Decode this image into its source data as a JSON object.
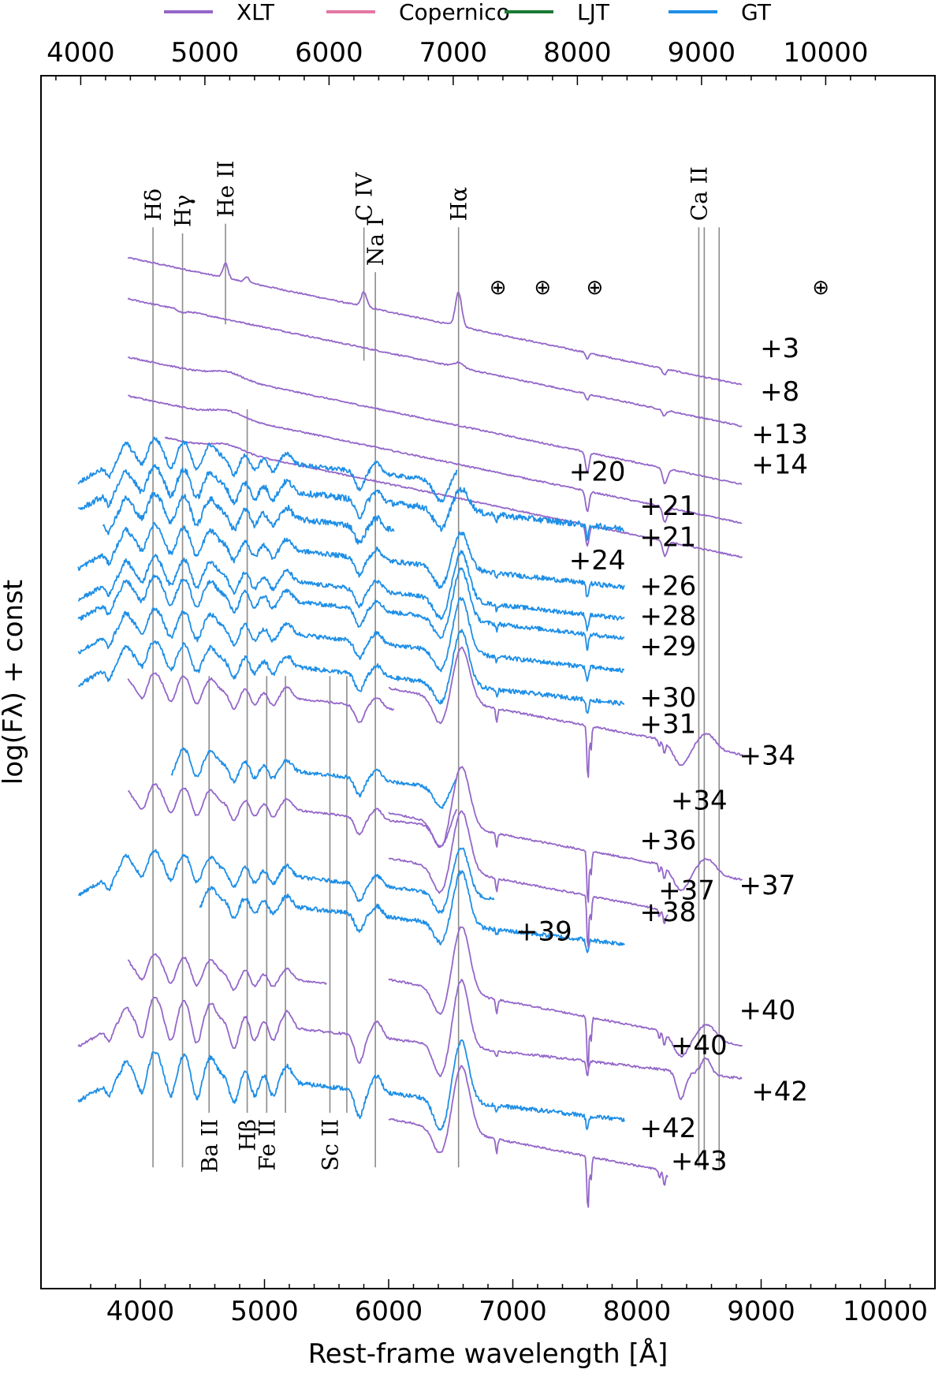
{
  "chart_data": {
    "type": "line",
    "xlabel": "Rest-frame wavelength [Å]",
    "ylabel": "log(Fλ) + const",
    "xlim": [
      3200,
      10400
    ],
    "xticks": [
      4000,
      5000,
      6000,
      7000,
      8000,
      9000,
      10000
    ],
    "top_xticks": [
      4000,
      5000,
      6000,
      7000,
      8000,
      9000,
      10000
    ],
    "top_axis_offset": 480,
    "legend": {
      "placement": "top, outside plot",
      "entries": [
        {
          "name": "XLT",
          "color": "#9467c9"
        },
        {
          "name": "Copernico",
          "color": "#e377a2"
        },
        {
          "name": "LJT",
          "color": "#1a7a35"
        },
        {
          "name": "GT",
          "color": "#1f8fe6"
        }
      ]
    },
    "line_ids": [
      {
        "label": "Hδ",
        "x": 4102,
        "y0": 1.0,
        "y1": 8.75,
        "label_pos": "top"
      },
      {
        "label": "Hγ",
        "x": 4340,
        "y0": 1.0,
        "y1": 8.7,
        "label_pos": "top"
      },
      {
        "label": "He II",
        "x": 4686,
        "y0": 7.95,
        "y1": 8.78,
        "label_pos": "top"
      },
      {
        "label": "C IV",
        "x": 5801,
        "y0": 7.65,
        "y1": 8.75,
        "label_pos": "top"
      },
      {
        "label": "Na I",
        "x": 5893,
        "y0": 1.0,
        "y1": 8.38,
        "label_pos": "top"
      },
      {
        "label": "Hα",
        "x": 6563,
        "y0": 1.0,
        "y1": 8.75,
        "label_pos": "top"
      },
      {
        "label": "Ca II",
        "x": 8498,
        "y0": 1.0,
        "y1": 8.75,
        "label_pos": "top"
      },
      {
        "label": "",
        "x": 8542,
        "y0": 1.0,
        "y1": 8.75,
        "label_pos": "none"
      },
      {
        "label": "",
        "x": 8662,
        "y0": 1.0,
        "y1": 8.75,
        "label_pos": "none"
      },
      {
        "label": "Ba II",
        "x": 4554,
        "y0": 1.45,
        "y1": 5.05,
        "label_pos": "bottom"
      },
      {
        "label": "Hβ",
        "x": 4861,
        "y0": 1.45,
        "y1": 7.25,
        "label_pos": "bottom"
      },
      {
        "label": "Fe II",
        "x": 5018,
        "y0": 1.45,
        "y1": 5.05,
        "label_pos": "bottom"
      },
      {
        "label": "",
        "x": 5169,
        "y0": 1.45,
        "y1": 5.05,
        "label_pos": "none"
      },
      {
        "label": "Sc II",
        "x": 5527,
        "y0": 1.45,
        "y1": 5.05,
        "label_pos": "bottom"
      },
      {
        "label": "",
        "x": 5663,
        "y0": 1.45,
        "y1": 5.05,
        "label_pos": "none"
      }
    ],
    "telluric": [
      {
        "symbol": "⊕",
        "x": 6880
      },
      {
        "symbol": "⊕",
        "x": 7240
      },
      {
        "symbol": "⊕",
        "x": 7660
      },
      {
        "symbol": "⊕",
        "x": 9480
      }
    ],
    "telluric_y": 8.2,
    "series": [
      {
        "id": 0,
        "instrument": "XLT",
        "x_range": [
          3900,
          8850
        ],
        "offset": 8.5,
        "profile": "early",
        "ha": 0.28,
        "noise": 0.006
      },
      {
        "id": 1,
        "instrument": "XLT",
        "x_range": [
          3900,
          8850
        ],
        "offset": 8.16,
        "profile": "early2",
        "label": "+3",
        "label_xy": [
          9150,
          7.68
        ],
        "noise": 0.006
      },
      {
        "id": 2,
        "instrument": "XLT",
        "x_range": [
          3900,
          8850
        ],
        "offset": 7.68,
        "profile": "early3",
        "label": "+8",
        "label_xy": [
          9150,
          7.32
        ],
        "noise": 0.006
      },
      {
        "id": 3,
        "instrument": "XLT",
        "x_range": [
          3900,
          8850
        ],
        "offset": 7.36,
        "profile": "early3",
        "label": "+13",
        "label_xy": [
          9150,
          6.97
        ],
        "noise": 0.006
      },
      {
        "id": 4,
        "instrument": "XLT",
        "x_range": [
          4200,
          8850
        ],
        "offset": 7.08,
        "profile": "early3",
        "label": "+14",
        "label_xy": [
          9150,
          6.72
        ],
        "noise": 0.006
      },
      {
        "id": 5,
        "instrument": "GT",
        "x_range": [
          3500,
          6550
        ],
        "offset": 6.95,
        "profile": "photo",
        "ha": 0.12,
        "label": "+20",
        "label_xy": [
          7680,
          6.66
        ],
        "noise": 0.018
      },
      {
        "id": 6,
        "instrument": "GT",
        "x_range": [
          3500,
          7900
        ],
        "offset": 6.72,
        "profile": "photo",
        "ha": 0.18,
        "label": "+21",
        "label_xy": [
          8250,
          6.38
        ],
        "noise": 0.025
      },
      {
        "id": 7,
        "instrument": "GT",
        "x_range": [
          3700,
          6050
        ],
        "offset": 6.5,
        "profile": "photo",
        "ha": 0.15,
        "label": "+21",
        "label_xy": [
          8250,
          6.12
        ],
        "noise": 0.025
      },
      {
        "id": 8,
        "instrument": "GT",
        "x_range": [
          3500,
          7900
        ],
        "offset": 6.24,
        "profile": "photo",
        "ha": 0.3,
        "label": "+24",
        "label_xy": [
          7680,
          5.93
        ],
        "noise": 0.02
      },
      {
        "id": 9,
        "instrument": "GT",
        "x_range": [
          3500,
          7900
        ],
        "offset": 5.98,
        "profile": "photo",
        "ha": 0.4,
        "label": "+26",
        "label_xy": [
          8250,
          5.72
        ],
        "noise": 0.018
      },
      {
        "id": 10,
        "instrument": "GT",
        "x_range": [
          3500,
          7900
        ],
        "offset": 5.82,
        "profile": "photo",
        "ha": 0.42,
        "label": "+28",
        "label_xy": [
          8250,
          5.47
        ],
        "noise": 0.018
      },
      {
        "id": 11,
        "instrument": "GT",
        "x_range": [
          3500,
          7900
        ],
        "offset": 5.55,
        "profile": "photo",
        "ha": 0.45,
        "label": "+29",
        "label_xy": [
          8250,
          5.22
        ],
        "noise": 0.018
      },
      {
        "id": 12,
        "instrument": "GT",
        "x_range": [
          3500,
          7900
        ],
        "offset": 5.28,
        "profile": "photo",
        "ha": 0.45,
        "label": "+30",
        "label_xy": [
          8250,
          4.8
        ],
        "noise": 0.018
      },
      {
        "id": 13,
        "instrument": "XLT",
        "x_range": [
          3900,
          6050
        ],
        "offset": 5.02,
        "profile": "photo",
        "ha": 0.0,
        "label": "+31",
        "label_xy": [
          8250,
          4.58
        ],
        "noise": 0.008
      },
      {
        "id": 14,
        "instrument": "XLT",
        "x_range": [
          6000,
          8850
        ],
        "offset": 4.95,
        "profile": "red",
        "ha": 0.45,
        "label": "+34",
        "label_xy": [
          9050,
          4.32
        ],
        "noise": 0.008
      },
      {
        "id": 15,
        "instrument": "GT",
        "x_range": [
          4250,
          6550
        ],
        "offset": 4.42,
        "profile": "photo",
        "ha": 0.12,
        "label": "+34",
        "label_xy": [
          8500,
          3.95
        ],
        "noise": 0.015
      },
      {
        "id": 16,
        "instrument": "XLT",
        "x_range": [
          3900,
          6550
        ],
        "offset": 4.1,
        "profile": "photo",
        "ha": 0.2,
        "label": "+36",
        "label_xy": [
          8250,
          3.62
        ],
        "noise": 0.008
      },
      {
        "id": 17,
        "instrument": "XLT",
        "x_range": [
          6000,
          8850
        ],
        "offset": 3.92,
        "profile": "red",
        "ha": 0.5,
        "label": "+37",
        "label_xy": [
          9050,
          3.25
        ],
        "noise": 0.008
      },
      {
        "id": 18,
        "instrument": "GT",
        "x_range": [
          3500,
          6850
        ],
        "offset": 3.55,
        "profile": "photo",
        "ha": 0.4,
        "label": "+39",
        "label_xy": [
          7250,
          2.87
        ],
        "noise": 0.015
      },
      {
        "id": 19,
        "instrument": "GT",
        "x_range": [
          4480,
          7900
        ],
        "offset": 3.3,
        "profile": "photo",
        "ha": 0.45,
        "label": "+38",
        "label_xy": [
          8250,
          3.03
        ],
        "noise": 0.018
      },
      {
        "id": 20,
        "instrument": "XLT",
        "x_range": [
          6000,
          8250
        ],
        "offset": 3.55,
        "profile": "red",
        "ha": 0.5,
        "label": "+37",
        "label_xy": [
          8400,
          3.21
        ],
        "noise": 0.008
      },
      {
        "id": 21,
        "instrument": "XLT",
        "x_range": [
          3900,
          5500
        ],
        "offset": 2.7,
        "profile": "photo",
        "ha": 0.0,
        "label": "+40",
        "label_xy": [
          9050,
          2.22
        ],
        "noise": 0.008
      },
      {
        "id": 22,
        "instrument": "XLT",
        "x_range": [
          6000,
          8850
        ],
        "offset": 2.55,
        "profile": "red",
        "ha": 0.55,
        "label": "+40",
        "label_xy": [
          8500,
          1.93
        ],
        "noise": 0.008
      },
      {
        "id": 23,
        "instrument": "XLT",
        "x_range": [
          3500,
          8850
        ],
        "offset": 2.3,
        "profile": "late",
        "ha": 0.55,
        "label": "+42",
        "label_xy": [
          9150,
          1.55
        ],
        "noise": 0.01
      },
      {
        "id": 24,
        "instrument": "GT",
        "x_range": [
          3500,
          7900
        ],
        "offset": 1.85,
        "profile": "late",
        "ha": 0.5,
        "label": "+42",
        "label_xy": [
          8250,
          1.25
        ],
        "noise": 0.018
      },
      {
        "id": 25,
        "instrument": "XLT",
        "x_range": [
          6000,
          8250
        ],
        "offset": 1.4,
        "profile": "red",
        "ha": 0.55,
        "label": "+43",
        "label_xy": [
          8500,
          0.98
        ],
        "noise": 0.008
      }
    ],
    "ylim": [
      0.0,
      10.0
    ]
  }
}
